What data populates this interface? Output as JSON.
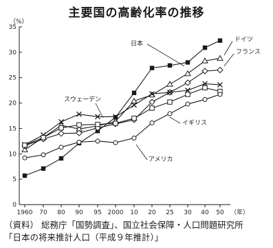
{
  "title": "主要国の高齢化率の推移",
  "source_lines": [
    "（資料） 総務庁「国勢調査」、国立社会保障・人口問題研究所",
    "「日本の将来推計人口（平成９年推計）」"
  ],
  "chart_data": {
    "type": "line",
    "title": "主要国の高齢化率の推移",
    "ylabel": "（%）",
    "xlabel": "（年）",
    "ylim": [
      0,
      35
    ],
    "yticks": [
      0,
      5,
      10,
      15,
      20,
      25,
      30,
      35
    ],
    "x": [
      "1960",
      "70",
      "80",
      "90",
      "95",
      "2000",
      "10",
      "20",
      "25",
      "30",
      "40",
      "50"
    ],
    "grid": false,
    "legend": "inline labels next to lines",
    "series": [
      {
        "name": "日本",
        "marker": "filled-square",
        "values": [
          5.7,
          7.1,
          9.1,
          12.1,
          14.5,
          17.2,
          22.0,
          26.9,
          27.4,
          28.0,
          30.9,
          32.3
        ]
      },
      {
        "name": "ドイツ",
        "marker": "open-triangle",
        "values": [
          10.8,
          13.2,
          15.6,
          14.9,
          15.5,
          16.4,
          20.4,
          21.6,
          23.7,
          25.8,
          28.3,
          28.8
        ]
      },
      {
        "name": "フランス",
        "marker": "open-diamond",
        "values": [
          11.6,
          12.9,
          14.0,
          14.1,
          15.1,
          15.9,
          16.7,
          20.2,
          22.1,
          24.0,
          26.3,
          26.5
        ]
      },
      {
        "name": "スウェーデン",
        "marker": "cross",
        "values": [
          11.8,
          13.7,
          16.3,
          17.8,
          17.3,
          17.3,
          19.6,
          21.8,
          22.1,
          22.5,
          23.8,
          23.6
        ]
      },
      {
        "name": "イギリス",
        "marker": "open-square",
        "values": [
          11.7,
          13.2,
          15.1,
          15.7,
          15.8,
          16.0,
          17.0,
          19.0,
          20.2,
          21.7,
          23.0,
          22.3
        ]
      },
      {
        "name": "アメリカ",
        "marker": "open-circle",
        "values": [
          9.2,
          9.8,
          11.3,
          12.3,
          12.5,
          12.2,
          13.1,
          16.1,
          17.9,
          19.8,
          20.7,
          21.7
        ]
      }
    ],
    "colors": {
      "line": "#1a1a1a",
      "background": "#ffffff"
    }
  }
}
